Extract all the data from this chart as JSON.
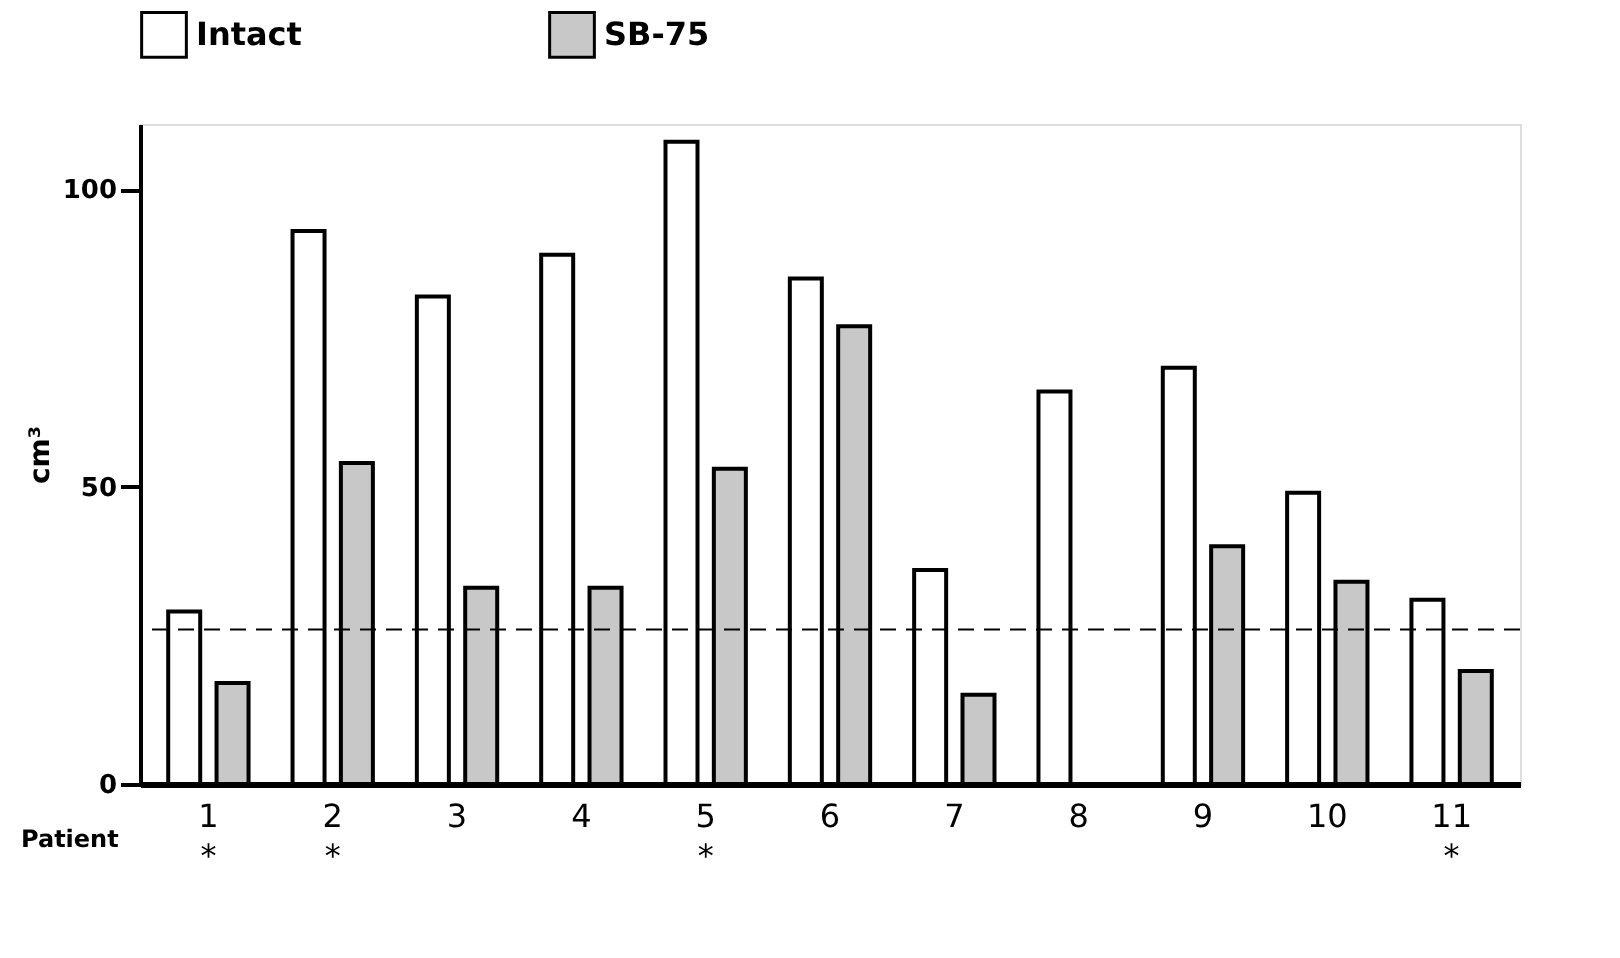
{
  "chart_data": {
    "type": "bar",
    "xlabel": "Patient",
    "ylabel": "cm³",
    "categories": [
      "1\n*",
      "2\n*",
      "3",
      "4",
      "5\n*",
      "6",
      "7",
      "8",
      "9",
      "10",
      "11\n*"
    ],
    "series": [
      {
        "name": "Intact",
        "color": "#ffffff",
        "values": [
          29,
          93,
          82,
          89,
          108,
          85,
          36,
          66,
          70,
          49,
          31
        ]
      },
      {
        "name": "SB-75",
        "color": "#c8c8c8",
        "values": [
          17,
          54,
          33,
          33,
          53,
          77,
          15,
          null,
          40,
          34,
          19
        ]
      }
    ],
    "ylim": [
      0,
      111
    ],
    "yticks": [
      0,
      50,
      100
    ],
    "grid": false,
    "legend": "top",
    "ref_lines": [
      {
        "axis": "y",
        "value": 26,
        "line_style": "dashed"
      }
    ]
  }
}
